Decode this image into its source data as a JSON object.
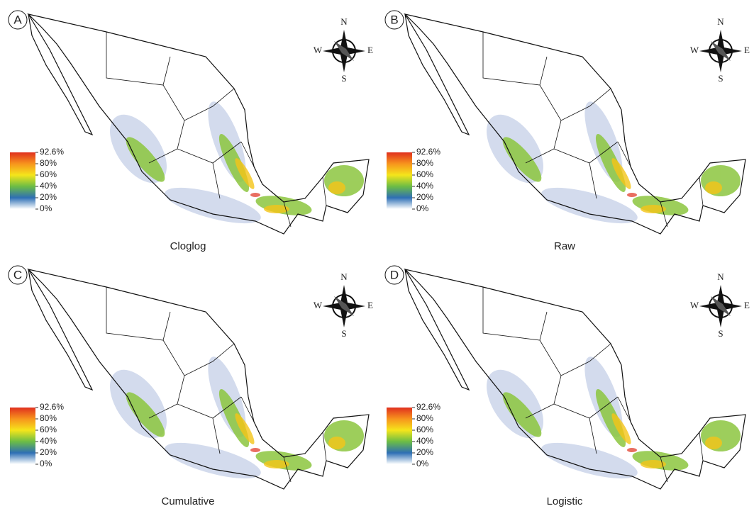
{
  "panels": [
    {
      "letter": "A",
      "caption": "Cloglog",
      "legend": [
        "92.6%",
        "80%",
        "60%",
        "40%",
        "20%",
        "0%"
      ],
      "compass": {
        "n": "N",
        "e": "E",
        "s": "S",
        "w": "W"
      }
    },
    {
      "letter": "B",
      "caption": "Raw",
      "legend": [
        "92.6%",
        "80%",
        "60%",
        "40%",
        "20%",
        "0%"
      ],
      "compass": {
        "n": "N",
        "e": "E",
        "s": "S",
        "w": "W"
      }
    },
    {
      "letter": "C",
      "caption": "Cumulative",
      "legend": [
        "92.6%",
        "80%",
        "60%",
        "40%",
        "20%",
        "0%"
      ],
      "compass": {
        "n": "N",
        "e": "E",
        "s": "S",
        "w": "W"
      }
    },
    {
      "letter": "D",
      "caption": "Logistic",
      "legend": [
        "92.6%",
        "80%",
        "60%",
        "40%",
        "20%",
        "0%"
      ],
      "compass": {
        "n": "N",
        "e": "E",
        "s": "S",
        "w": "W"
      }
    }
  ]
}
